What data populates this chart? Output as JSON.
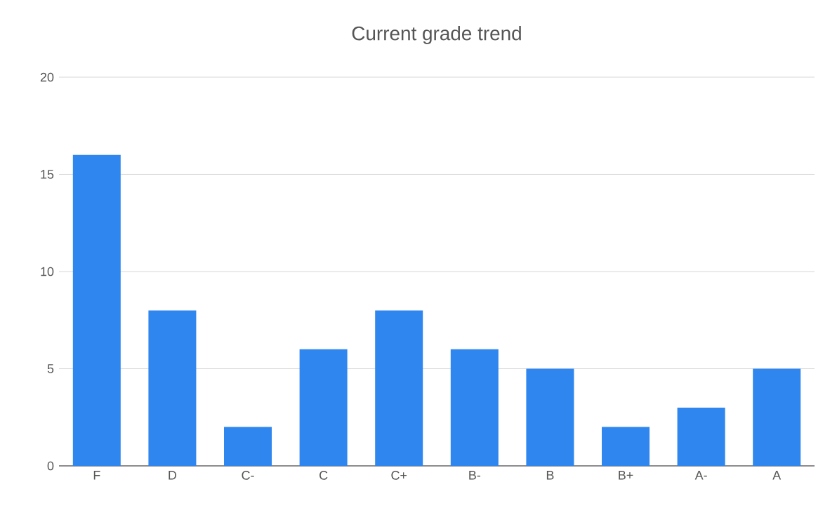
{
  "chart_data": {
    "type": "bar",
    "title": "Current grade trend",
    "categories": [
      "F",
      "D",
      "C-",
      "C",
      "C+",
      "B-",
      "B",
      "B+",
      "A-",
      "A"
    ],
    "values": [
      16,
      8,
      2,
      6,
      8,
      6,
      5,
      2,
      3,
      5
    ],
    "color": "#2e86ee",
    "ylim": [
      0,
      20
    ],
    "yticks": [
      0,
      5,
      10,
      15,
      20
    ],
    "grid": "y"
  }
}
